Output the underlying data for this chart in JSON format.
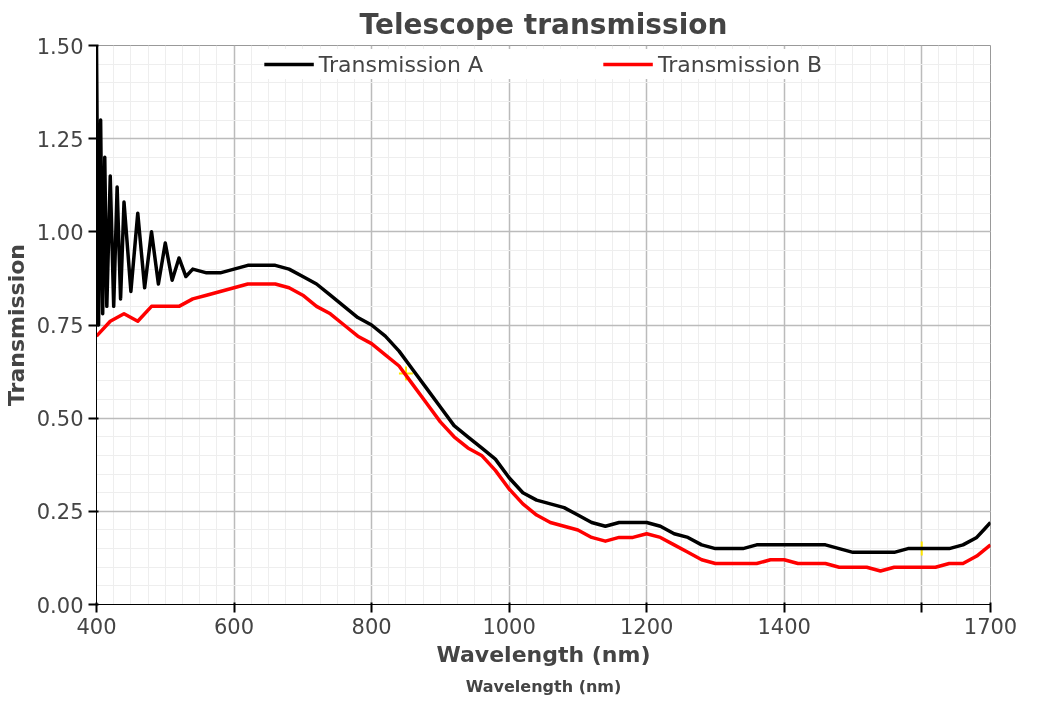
{
  "chart_data": {
    "type": "line",
    "title": "Telescope transmission",
    "xlabel": "Wavelength (nm)",
    "ylabel": "Transmission",
    "annotations": [
      "Wavelength (nm)"
    ],
    "xlim": [
      400,
      1700
    ],
    "ylim": [
      0,
      1.5
    ],
    "xticks": [
      400,
      600,
      800,
      1000,
      1200,
      1400,
      {
        "value": 1600,
        "label": null
      },
      1700
    ],
    "yticks": [
      {
        "value": 0,
        "label": "0.00"
      },
      0.25,
      {
        "value": 0.5,
        "label": "0.50"
      },
      0.75,
      {
        "value": 1,
        "label": "1.00"
      },
      1.25,
      {
        "value": 1.5,
        "label": "1.50"
      }
    ],
    "grid": true,
    "legend": "top",
    "line_style": "solid",
    "marker": "none",
    "series": [
      {
        "name": "Transmission A",
        "color": "#000000",
        "x": [
          400,
          403,
          406,
          409,
          412,
          415,
          420,
          425,
          430,
          435,
          440,
          450,
          460,
          470,
          480,
          490,
          500,
          510,
          520,
          530,
          540,
          560,
          580,
          600,
          620,
          640,
          660,
          680,
          700,
          720,
          740,
          760,
          780,
          800,
          820,
          840,
          860,
          880,
          900,
          920,
          940,
          960,
          980,
          1000,
          1020,
          1040,
          1060,
          1080,
          1100,
          1120,
          1140,
          1160,
          1180,
          1200,
          1220,
          1240,
          1260,
          1280,
          1300,
          1320,
          1340,
          1360,
          1380,
          1400,
          1420,
          1440,
          1460,
          1480,
          1500,
          1520,
          1540,
          1560,
          1580,
          1600,
          1620,
          1640,
          1660,
          1680,
          1690,
          1700
        ],
        "values": [
          1.5,
          0.75,
          1.3,
          0.78,
          1.2,
          0.8,
          1.15,
          0.8,
          1.12,
          0.82,
          1.08,
          0.84,
          1.05,
          0.85,
          1.0,
          0.86,
          0.97,
          0.87,
          0.93,
          0.88,
          0.9,
          0.89,
          0.89,
          0.9,
          0.91,
          0.91,
          0.91,
          0.9,
          0.88,
          0.86,
          0.83,
          0.8,
          0.77,
          0.75,
          0.72,
          0.68,
          0.63,
          0.58,
          0.53,
          0.48,
          0.45,
          0.42,
          0.39,
          0.34,
          0.3,
          0.28,
          0.27,
          0.26,
          0.24,
          0.22,
          0.21,
          0.22,
          0.22,
          0.22,
          0.21,
          0.19,
          0.18,
          0.16,
          0.15,
          0.15,
          0.15,
          0.16,
          0.16,
          0.16,
          0.16,
          0.16,
          0.16,
          0.15,
          0.14,
          0.14,
          0.14,
          0.14,
          0.15,
          0.15,
          0.15,
          0.15,
          0.16,
          0.18,
          0.2,
          0.22
        ]
      },
      {
        "name": "Transmission B",
        "color": "#ff0000",
        "x": [
          400,
          420,
          440,
          460,
          480,
          500,
          520,
          540,
          560,
          580,
          600,
          620,
          640,
          660,
          680,
          700,
          720,
          740,
          760,
          780,
          800,
          820,
          840,
          860,
          880,
          900,
          920,
          940,
          960,
          980,
          1000,
          1020,
          1040,
          1060,
          1080,
          1100,
          1120,
          1140,
          1160,
          1180,
          1200,
          1220,
          1240,
          1260,
          1280,
          1300,
          1320,
          1340,
          1360,
          1380,
          1400,
          1420,
          1440,
          1460,
          1480,
          1500,
          1520,
          1540,
          1560,
          1580,
          1600,
          1620,
          1640,
          1660,
          1680,
          1700
        ],
        "values": [
          0.72,
          0.76,
          0.78,
          0.76,
          0.8,
          0.8,
          0.8,
          0.82,
          0.83,
          0.84,
          0.85,
          0.86,
          0.86,
          0.86,
          0.85,
          0.83,
          0.8,
          0.78,
          0.75,
          0.72,
          0.7,
          0.67,
          0.64,
          0.59,
          0.54,
          0.49,
          0.45,
          0.42,
          0.4,
          0.36,
          0.31,
          0.27,
          0.24,
          0.22,
          0.21,
          0.2,
          0.18,
          0.17,
          0.18,
          0.18,
          0.19,
          0.18,
          0.16,
          0.14,
          0.12,
          0.11,
          0.11,
          0.11,
          0.11,
          0.12,
          0.12,
          0.11,
          0.11,
          0.11,
          0.1,
          0.1,
          0.1,
          0.09,
          0.1,
          0.1,
          0.1,
          0.1,
          0.11,
          0.11,
          0.13,
          0.16
        ]
      },
      {
        "type": "scatter",
        "marker": "cross",
        "color": "#ffe600",
        "x": [
          850,
          1600
        ],
        "values": [
          0.62,
          0.15
        ]
      }
    ]
  }
}
